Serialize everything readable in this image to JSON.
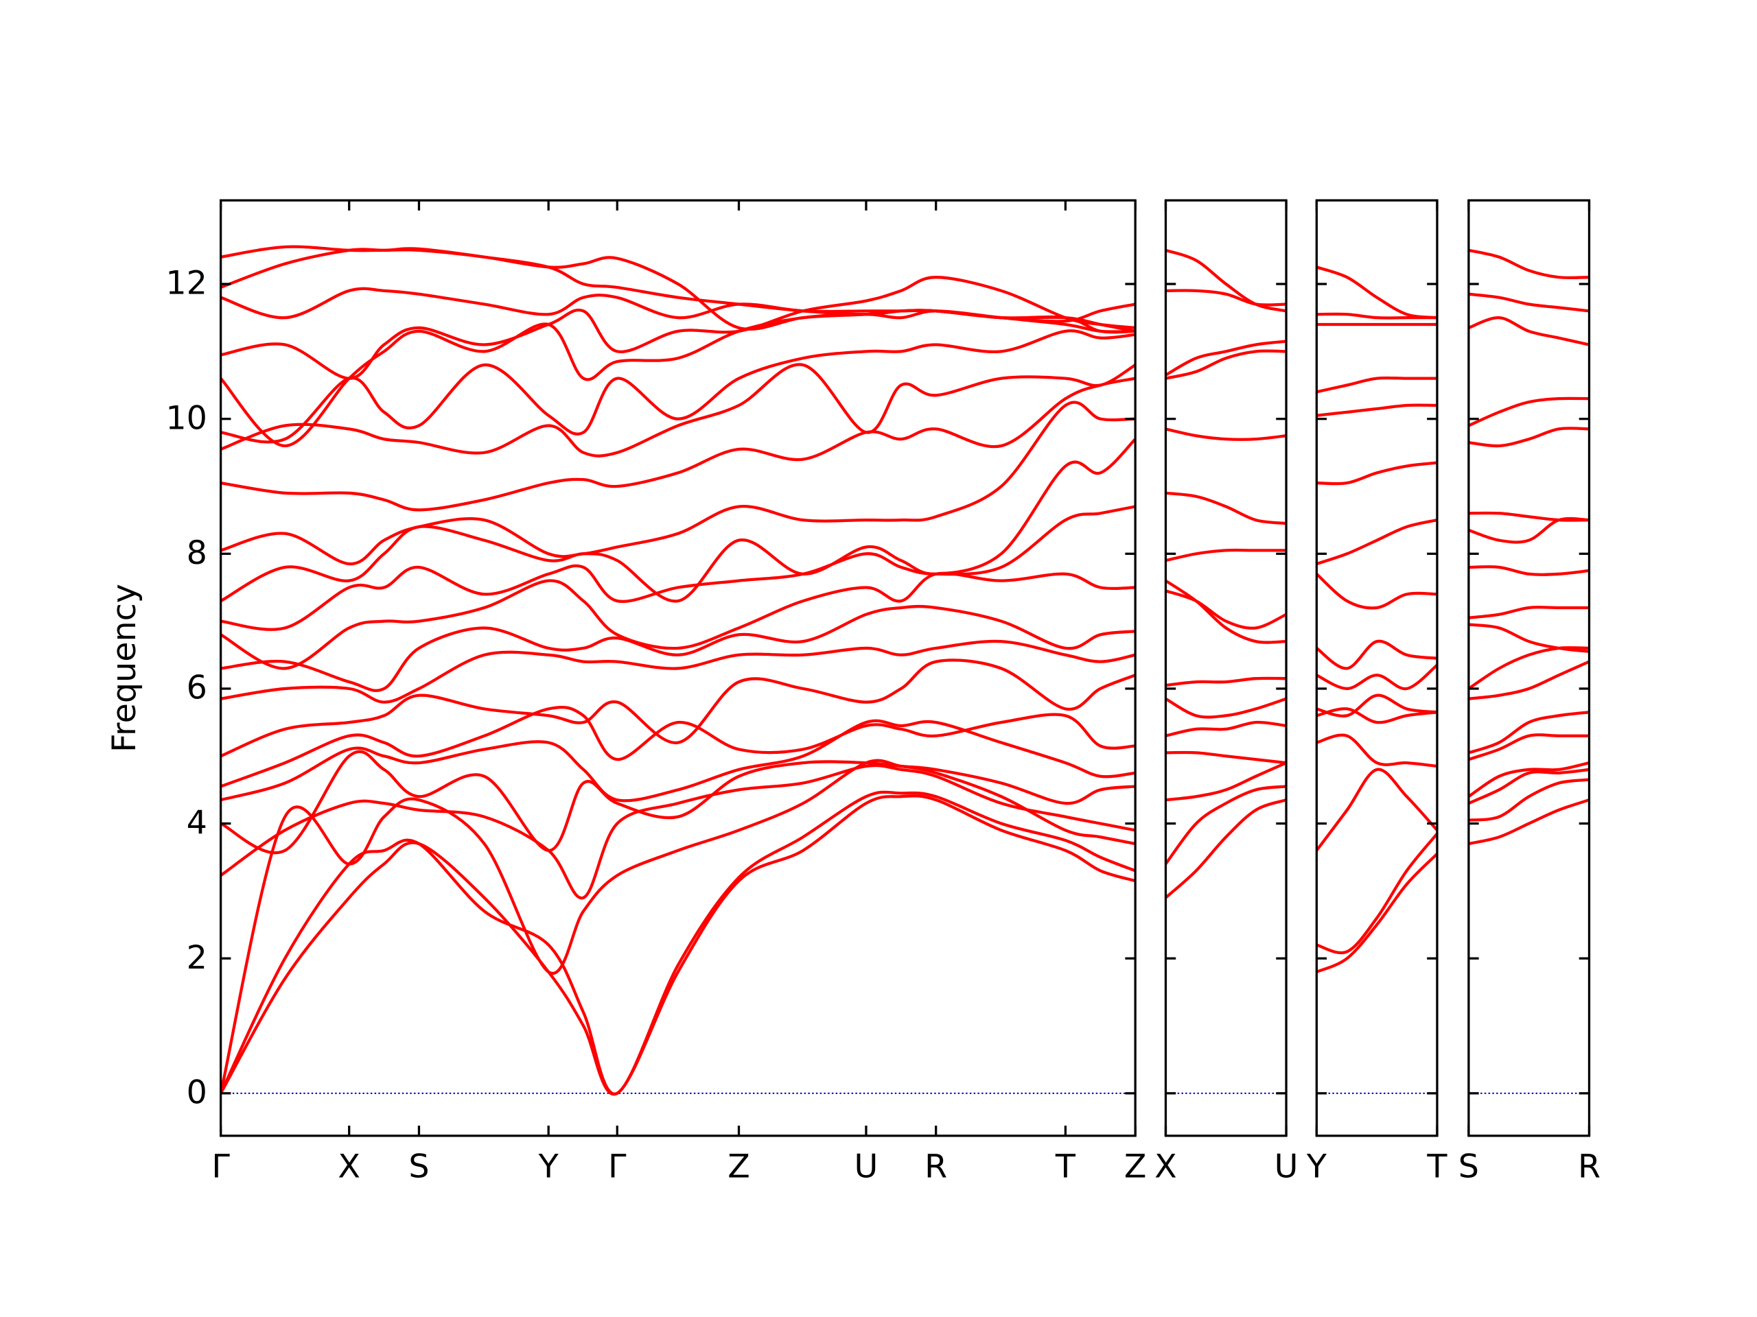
{
  "chart_data": [
    {
      "type": "line",
      "ylabel": "Frequency",
      "color": "#ff0000",
      "x": [
        0,
        0.57,
        1.14,
        1.45,
        1.76,
        2.34,
        2.91,
        3.22,
        3.52,
        4.06,
        4.6,
        5.17,
        5.73,
        6.04,
        6.35,
        6.93,
        7.5,
        7.81,
        8.12
      ],
      "xlim": [
        0,
        8.12
      ],
      "xticks": [
        {
          "value": 0,
          "label": "Γ"
        },
        {
          "value": 1.14,
          "label": "X"
        },
        {
          "value": 1.76,
          "label": "S"
        },
        {
          "value": 2.91,
          "label": "Y"
        },
        {
          "value": 3.52,
          "label": "Γ"
        },
        {
          "value": 4.6,
          "label": "Z"
        },
        {
          "value": 5.73,
          "label": "U"
        },
        {
          "value": 6.35,
          "label": "R"
        },
        {
          "value": 7.5,
          "label": "T"
        },
        {
          "value": 8.12,
          "label": "Z"
        }
      ],
      "ylim": [
        -0.63,
        13.24
      ],
      "yticks": [
        0,
        2,
        4,
        6,
        8,
        10,
        12
      ],
      "series": [
        {
          "values": [
            0,
            1.7,
            2.9,
            3.4,
            3.7,
            2.9,
            1.8,
            1.0,
            0,
            1.8,
            3.15,
            3.6,
            4.3,
            4.4,
            4.35,
            3.9,
            3.6,
            3.3,
            3.15
          ]
        },
        {
          "values": [
            0,
            2.0,
            3.4,
            3.6,
            3.7,
            2.7,
            2.2,
            1.2,
            0,
            1.9,
            3.2,
            3.8,
            4.4,
            4.45,
            4.4,
            4.0,
            3.75,
            3.5,
            3.3
          ]
        },
        {
          "values": [
            0,
            4.1,
            3.4,
            4.1,
            4.35,
            3.7,
            1.8,
            2.7,
            3.23,
            3.6,
            3.9,
            4.3,
            4.9,
            4.85,
            4.75,
            4.4,
            3.9,
            3.8,
            3.7
          ]
        },
        {
          "values": [
            3.23,
            3.9,
            4.3,
            4.3,
            4.2,
            4.1,
            3.6,
            2.9,
            4.0,
            4.3,
            4.5,
            4.6,
            4.85,
            4.8,
            4.7,
            4.3,
            4.1,
            4.0,
            3.9
          ]
        },
        {
          "values": [
            4.0,
            3.6,
            5.0,
            4.8,
            4.4,
            4.7,
            3.6,
            4.6,
            4.3,
            4.1,
            4.7,
            4.9,
            4.9,
            4.85,
            4.8,
            4.6,
            4.3,
            4.5,
            4.55
          ]
        },
        {
          "values": [
            4.35,
            4.6,
            5.1,
            5.0,
            4.9,
            5.1,
            5.2,
            4.8,
            4.35,
            4.5,
            4.8,
            5.0,
            5.5,
            5.45,
            5.5,
            5.2,
            4.9,
            4.7,
            4.75
          ]
        },
        {
          "values": [
            4.55,
            4.9,
            5.3,
            5.2,
            5.0,
            5.3,
            5.7,
            5.6,
            4.95,
            5.5,
            5.1,
            5.1,
            5.45,
            5.4,
            5.3,
            5.5,
            5.6,
            5.15,
            5.15
          ]
        },
        {
          "values": [
            5.0,
            5.4,
            5.5,
            5.6,
            5.9,
            5.7,
            5.6,
            5.5,
            5.8,
            5.2,
            6.1,
            6.0,
            5.8,
            6.0,
            6.4,
            6.3,
            5.7,
            6.0,
            6.2
          ]
        },
        {
          "values": [
            5.85,
            6.0,
            6.0,
            5.8,
            6.0,
            6.5,
            6.5,
            6.4,
            6.4,
            6.3,
            6.5,
            6.5,
            6.6,
            6.5,
            6.6,
            6.7,
            6.5,
            6.4,
            6.5
          ]
        },
        {
          "values": [
            6.3,
            6.4,
            6.1,
            6.0,
            6.6,
            6.9,
            6.6,
            6.6,
            6.75,
            6.5,
            6.8,
            6.7,
            7.1,
            7.2,
            7.2,
            7.0,
            6.6,
            6.8,
            6.85
          ]
        },
        {
          "values": [
            6.8,
            6.3,
            6.9,
            7.0,
            7.0,
            7.2,
            7.6,
            7.3,
            6.8,
            6.6,
            6.9,
            7.3,
            7.5,
            7.3,
            7.7,
            7.6,
            7.7,
            7.5,
            7.5
          ]
        },
        {
          "values": [
            7.0,
            6.9,
            7.5,
            7.5,
            7.8,
            7.4,
            7.7,
            7.8,
            7.3,
            7.5,
            7.6,
            7.7,
            8.0,
            7.8,
            7.7,
            7.8,
            8.5,
            8.6,
            8.7
          ]
        },
        {
          "values": [
            7.3,
            7.8,
            7.6,
            8.0,
            8.4,
            8.2,
            7.9,
            8.0,
            7.9,
            7.3,
            8.2,
            7.7,
            8.1,
            7.9,
            7.7,
            8.0,
            9.3,
            9.2,
            9.7
          ]
        },
        {
          "values": [
            8.05,
            8.3,
            7.85,
            8.2,
            8.4,
            8.5,
            8.0,
            8.0,
            8.1,
            8.3,
            8.7,
            8.5,
            8.5,
            8.5,
            8.55,
            9.0,
            10.2,
            10.0,
            10.0
          ]
        },
        {
          "values": [
            9.05,
            8.9,
            8.9,
            8.8,
            8.65,
            8.8,
            9.05,
            9.1,
            9.0,
            9.2,
            9.55,
            9.4,
            9.8,
            9.7,
            9.85,
            9.6,
            10.3,
            10.5,
            10.6
          ]
        },
        {
          "values": [
            9.55,
            9.9,
            9.85,
            9.7,
            9.65,
            9.5,
            9.9,
            9.5,
            9.5,
            9.9,
            10.2,
            10.8,
            9.8,
            10.5,
            10.35,
            10.6,
            10.6,
            10.5,
            10.8
          ]
        },
        {
          "values": [
            9.8,
            9.7,
            10.6,
            10.1,
            9.9,
            10.8,
            10.05,
            9.8,
            10.6,
            10.0,
            10.6,
            10.9,
            11.0,
            11.0,
            11.1,
            11.0,
            11.3,
            11.2,
            11.25
          ]
        },
        {
          "values": [
            10.6,
            9.6,
            10.6,
            11.0,
            11.3,
            11.0,
            11.4,
            10.6,
            10.85,
            10.9,
            11.3,
            11.5,
            11.55,
            11.5,
            11.6,
            11.5,
            11.4,
            11.3,
            11.3
          ]
        },
        {
          "values": [
            10.95,
            11.1,
            10.6,
            11.1,
            11.35,
            11.1,
            11.4,
            11.6,
            11.0,
            11.3,
            11.3,
            11.6,
            11.75,
            11.9,
            12.1,
            11.9,
            11.5,
            11.4,
            11.35
          ]
        },
        {
          "values": [
            11.8,
            11.5,
            11.9,
            11.9,
            11.85,
            11.7,
            11.55,
            11.8,
            11.8,
            11.5,
            11.7,
            11.6,
            11.6,
            11.6,
            11.6,
            11.5,
            11.45,
            11.6,
            11.7
          ]
        },
        {
          "values": [
            11.95,
            12.3,
            12.5,
            12.5,
            12.52,
            12.4,
            12.25,
            12.3,
            12.38,
            12.0,
            11.35,
            11.5,
            11.55,
            11.6,
            11.6,
            11.5,
            11.5,
            11.4,
            11.3
          ]
        },
        {
          "values": [
            12.4,
            12.55,
            12.5,
            12.5,
            12.5,
            12.4,
            12.25,
            12.0,
            11.95,
            11.8,
            11.7,
            11.6,
            11.55,
            11.6,
            11.6,
            11.5,
            11.5,
            11.3,
            11.3
          ]
        }
      ]
    },
    {
      "type": "line",
      "color": "#ff0000",
      "x": [
        0,
        0.27,
        0.535,
        0.8,
        1.07
      ],
      "xlim": [
        0,
        1.07
      ],
      "xticks": [
        {
          "value": 0,
          "label": "X"
        },
        {
          "value": 1.07,
          "label": "U"
        }
      ],
      "ylim": [
        -0.63,
        13.24
      ],
      "yticks": [
        0,
        2,
        4,
        6,
        8,
        10,
        12
      ],
      "series": [
        {
          "values": [
            2.9,
            3.3,
            3.8,
            4.2,
            4.35
          ]
        },
        {
          "values": [
            3.4,
            4.0,
            4.3,
            4.5,
            4.55
          ]
        },
        {
          "values": [
            4.35,
            4.4,
            4.5,
            4.7,
            4.9
          ]
        },
        {
          "values": [
            5.05,
            5.05,
            5.0,
            4.95,
            4.9
          ]
        },
        {
          "values": [
            5.3,
            5.4,
            5.4,
            5.5,
            5.45
          ]
        },
        {
          "values": [
            5.85,
            5.6,
            5.6,
            5.7,
            5.85
          ]
        },
        {
          "values": [
            6.05,
            6.1,
            6.1,
            6.15,
            6.15
          ]
        },
        {
          "values": [
            7.45,
            7.3,
            7.0,
            6.9,
            7.1
          ]
        },
        {
          "values": [
            7.6,
            7.3,
            6.9,
            6.7,
            6.7
          ]
        },
        {
          "values": [
            7.9,
            8.0,
            8.05,
            8.05,
            8.05
          ]
        },
        {
          "values": [
            8.9,
            8.85,
            8.7,
            8.5,
            8.45
          ]
        },
        {
          "values": [
            9.85,
            9.75,
            9.7,
            9.7,
            9.75
          ]
        },
        {
          "values": [
            10.6,
            10.7,
            10.9,
            11.0,
            11.0
          ]
        },
        {
          "values": [
            10.65,
            10.9,
            11.0,
            11.1,
            11.15
          ]
        },
        {
          "values": [
            11.9,
            11.9,
            11.85,
            11.7,
            11.7
          ]
        },
        {
          "values": [
            12.5,
            12.35,
            12.0,
            11.7,
            11.6
          ]
        }
      ]
    },
    {
      "type": "line",
      "color": "#ff0000",
      "x": [
        0,
        0.27,
        0.535,
        0.8,
        1.07
      ],
      "xlim": [
        0,
        1.07
      ],
      "xticks": [
        {
          "value": 0,
          "label": "Y"
        },
        {
          "value": 1.07,
          "label": "T"
        }
      ],
      "ylim": [
        -0.63,
        13.24
      ],
      "yticks": [
        0,
        2,
        4,
        6,
        8,
        10,
        12
      ],
      "series": [
        {
          "values": [
            1.8,
            2.0,
            2.5,
            3.1,
            3.55
          ]
        },
        {
          "values": [
            2.2,
            2.1,
            2.6,
            3.3,
            3.85
          ]
        },
        {
          "values": [
            3.6,
            4.2,
            4.8,
            4.4,
            3.9
          ]
        },
        {
          "values": [
            5.2,
            5.3,
            4.9,
            4.9,
            4.85
          ]
        },
        {
          "values": [
            5.6,
            5.7,
            5.5,
            5.6,
            5.65
          ]
        },
        {
          "values": [
            5.7,
            5.6,
            5.9,
            5.7,
            5.65
          ]
        },
        {
          "values": [
            6.2,
            6.0,
            6.2,
            6.0,
            6.35
          ]
        },
        {
          "values": [
            6.6,
            6.3,
            6.7,
            6.5,
            6.45
          ]
        },
        {
          "values": [
            7.7,
            7.3,
            7.2,
            7.4,
            7.4
          ]
        },
        {
          "values": [
            7.85,
            8.0,
            8.2,
            8.4,
            8.5
          ]
        },
        {
          "values": [
            9.05,
            9.05,
            9.2,
            9.3,
            9.35
          ]
        },
        {
          "values": [
            10.05,
            10.1,
            10.15,
            10.2,
            10.2
          ]
        },
        {
          "values": [
            10.4,
            10.5,
            10.6,
            10.6,
            10.6
          ]
        },
        {
          "values": [
            11.4,
            11.4,
            11.4,
            11.4,
            11.4
          ]
        },
        {
          "values": [
            11.55,
            11.55,
            11.5,
            11.5,
            11.5
          ]
        },
        {
          "values": [
            12.25,
            12.1,
            11.8,
            11.55,
            11.5
          ]
        }
      ]
    },
    {
      "type": "line",
      "color": "#ff0000",
      "x": [
        0,
        0.27,
        0.535,
        0.8,
        1.07
      ],
      "xlim": [
        0,
        1.07
      ],
      "xticks": [
        {
          "value": 0,
          "label": "S"
        },
        {
          "value": 1.07,
          "label": "R"
        }
      ],
      "ylim": [
        -0.63,
        13.24
      ],
      "yticks": [
        0,
        2,
        4,
        6,
        8,
        10,
        12
      ],
      "series": [
        {
          "values": [
            3.7,
            3.8,
            4.0,
            4.2,
            4.35
          ]
        },
        {
          "values": [
            4.05,
            4.1,
            4.4,
            4.6,
            4.65
          ]
        },
        {
          "values": [
            4.3,
            4.5,
            4.75,
            4.75,
            4.8
          ]
        },
        {
          "values": [
            4.4,
            4.7,
            4.8,
            4.8,
            4.9
          ]
        },
        {
          "values": [
            4.95,
            5.1,
            5.3,
            5.3,
            5.3
          ]
        },
        {
          "values": [
            5.05,
            5.2,
            5.5,
            5.6,
            5.65
          ]
        },
        {
          "values": [
            5.85,
            5.9,
            6.0,
            6.2,
            6.4
          ]
        },
        {
          "values": [
            6.0,
            6.3,
            6.5,
            6.6,
            6.6
          ]
        },
        {
          "values": [
            6.95,
            6.9,
            6.7,
            6.6,
            6.55
          ]
        },
        {
          "values": [
            7.05,
            7.1,
            7.2,
            7.2,
            7.2
          ]
        },
        {
          "values": [
            7.8,
            7.8,
            7.7,
            7.7,
            7.75
          ]
        },
        {
          "values": [
            8.35,
            8.2,
            8.2,
            8.5,
            8.5
          ]
        },
        {
          "values": [
            8.6,
            8.6,
            8.55,
            8.5,
            8.5
          ]
        },
        {
          "values": [
            9.65,
            9.6,
            9.7,
            9.85,
            9.85
          ]
        },
        {
          "values": [
            9.9,
            10.1,
            10.25,
            10.3,
            10.3
          ]
        },
        {
          "values": [
            11.35,
            11.5,
            11.3,
            11.2,
            11.1
          ]
        },
        {
          "values": [
            11.85,
            11.8,
            11.7,
            11.65,
            11.6
          ]
        },
        {
          "values": [
            12.5,
            12.4,
            12.2,
            12.1,
            12.1
          ]
        }
      ]
    }
  ]
}
